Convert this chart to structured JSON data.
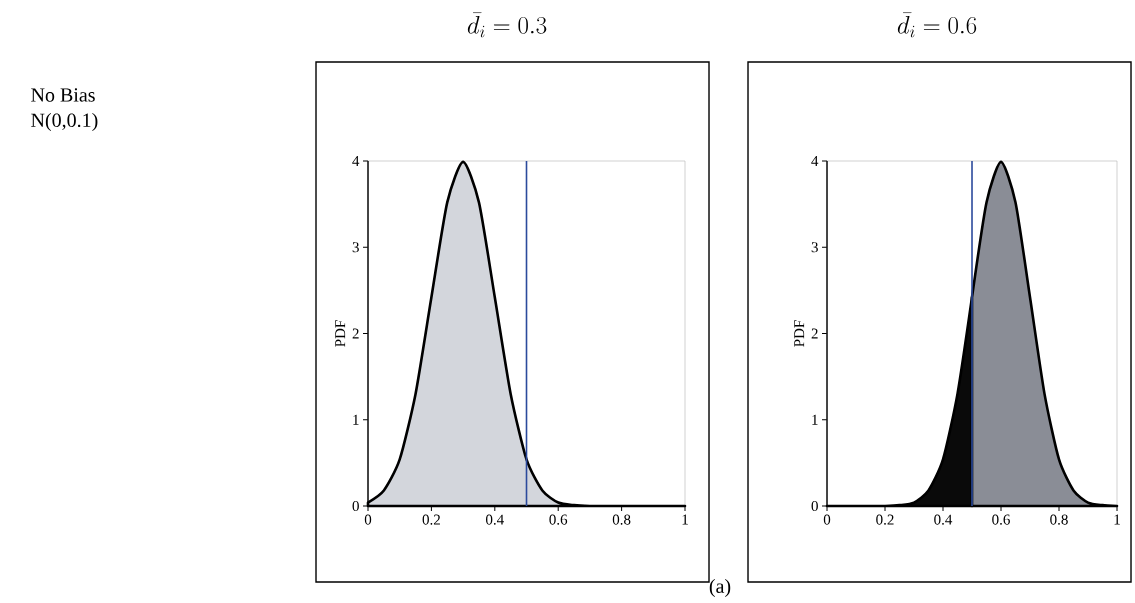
{
  "chart_data": [
    {
      "type": "area",
      "title": "\\bar{d}_i = 0.3",
      "ylabel": "PDF",
      "annotations": [
        "No Bias",
        "N(0,0.1)",
        "(a)"
      ],
      "x": [
        0,
        0.05,
        0.1,
        0.15,
        0.2,
        0.25,
        0.3,
        0.35,
        0.4,
        0.45,
        0.5,
        0.55,
        0.6,
        0.65,
        0.7,
        0.75,
        0.8,
        0.85,
        0.9,
        0.95,
        1
      ],
      "series": [
        {
          "color": "#d3d6dc",
          "values": [
            0.04,
            0.18,
            0.54,
            1.3,
            2.42,
            3.52,
            3.99,
            3.52,
            2.42,
            1.3,
            0.54,
            0.18,
            0.04,
            0.01,
            0,
            0,
            0,
            0,
            0,
            0,
            0
          ]
        }
      ],
      "xlim": [
        0,
        1
      ],
      "ylim": [
        0,
        4
      ],
      "xticks": [
        0,
        0.2,
        0.4,
        0.6,
        0.8,
        1
      ],
      "yticks": [
        0,
        1,
        2,
        3,
        4
      ],
      "ref_lines": [
        {
          "axis": "x",
          "value": 0.5,
          "color": "#2b4a9c"
        }
      ]
    },
    {
      "type": "area",
      "title": "\\bar{d}_i = 0.6",
      "ylabel": "PDF",
      "x": [
        0,
        0.05,
        0.1,
        0.15,
        0.2,
        0.25,
        0.3,
        0.35,
        0.4,
        0.45,
        0.5,
        0.55,
        0.6,
        0.65,
        0.7,
        0.75,
        0.8,
        0.85,
        0.9,
        0.95,
        1
      ],
      "series": [
        {
          "color": "#0a0a0a",
          "values": [
            0,
            0,
            0,
            0,
            0,
            0.01,
            0.04,
            0.18,
            0.54,
            1.3,
            2.42,
            null,
            null,
            null,
            null,
            null,
            null,
            null,
            null,
            null,
            null
          ]
        },
        {
          "color": "#8a8d96",
          "values": [
            null,
            null,
            null,
            null,
            null,
            null,
            null,
            null,
            null,
            null,
            2.42,
            3.52,
            3.99,
            3.52,
            2.42,
            1.3,
            0.54,
            0.18,
            0.04,
            0.01,
            0
          ]
        }
      ],
      "xlim": [
        0,
        1
      ],
      "ylim": [
        0,
        4
      ],
      "xticks": [
        0,
        0.2,
        0.4,
        0.6,
        0.8,
        1
      ],
      "yticks": [
        0,
        1,
        2,
        3,
        4
      ],
      "ref_lines": [
        {
          "axis": "x",
          "value": 0.5,
          "color": "#2b4a9c"
        }
      ]
    }
  ]
}
